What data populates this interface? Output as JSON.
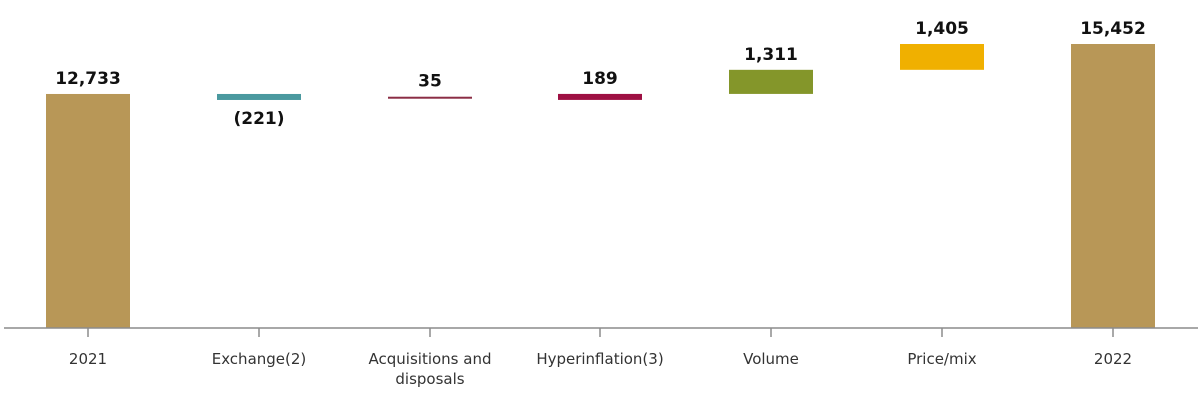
{
  "chart_data": {
    "type": "bar",
    "subtype": "waterfall",
    "categories": [
      [
        "2021"
      ],
      [
        "Exchange(2)"
      ],
      [
        "Acquisitions and",
        "disposals"
      ],
      [
        "Hyperinflation(3)"
      ],
      [
        "Volume"
      ],
      [
        "Price/mix"
      ],
      [
        "2022"
      ]
    ],
    "value_labels": [
      "12,733",
      "(221)",
      "35",
      "189",
      "1,311",
      "1,405",
      "15,452"
    ],
    "steps": [
      {
        "kind": "total",
        "value": 12733,
        "color": "#b89757"
      },
      {
        "kind": "delta",
        "value": -221,
        "color": "#4a999f"
      },
      {
        "kind": "delta",
        "value": 35,
        "color": "#8b2e45"
      },
      {
        "kind": "delta",
        "value": 189,
        "color": "#9e1043"
      },
      {
        "kind": "delta",
        "value": 1311,
        "color": "#84962a"
      },
      {
        "kind": "delta",
        "value": 1405,
        "color": "#f0b000"
      },
      {
        "kind": "total",
        "value": 15452,
        "color": "#b89757"
      }
    ],
    "ylim": [
      0,
      15452
    ],
    "axis_color": "#8c8c8c",
    "xlabel": "",
    "ylabel": "",
    "title": ""
  }
}
